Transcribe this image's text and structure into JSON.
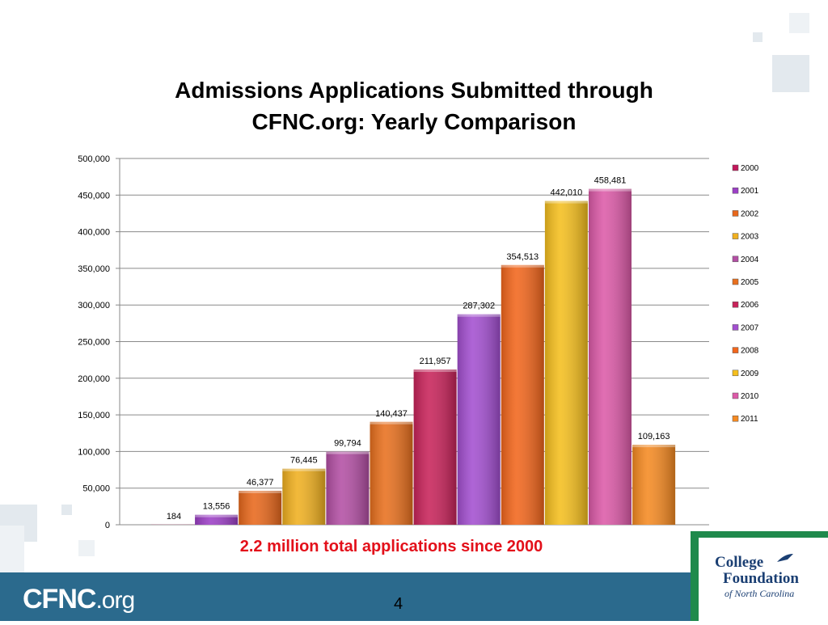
{
  "slide": {
    "title_line1": "Admissions Applications Submitted through",
    "title_line2": "CFNC.org: Yearly Comparison",
    "summary": "2.2 million total applications since 2000",
    "page_number": "4",
    "brand_main": "CFNC",
    "brand_domain": ".org",
    "logo_college": "College",
    "logo_foundation": "Foundation",
    "logo_nc": "of North Carolina"
  },
  "chart_data": {
    "type": "bar",
    "categories": [
      "2000",
      "2001",
      "2002",
      "2003",
      "2004",
      "2005",
      "2006",
      "2007",
      "2008",
      "2009",
      "2010",
      "2011"
    ],
    "values": [
      184,
      13556,
      46377,
      76445,
      99794,
      140437,
      211957,
      287302,
      354513,
      442010,
      458481,
      109163
    ],
    "data_labels": [
      "184",
      "13,556",
      "46,377",
      "76,445",
      "99,794",
      "140,437",
      "211,957",
      "287,302",
      "354,513",
      "442,010",
      "458,481",
      "109,163"
    ],
    "colors": [
      "#c2185b",
      "#9c3fc6",
      "#e8681c",
      "#f0b020",
      "#b34fa4",
      "#e8701e",
      "#c8235a",
      "#a34fd0",
      "#f2661c",
      "#f5bf1e",
      "#dc5aa8",
      "#f58a22"
    ],
    "legend": [
      "2000",
      "2001",
      "2002",
      "2003",
      "2004",
      "2005",
      "2006",
      "2007",
      "2008",
      "2009",
      "2010",
      "2011"
    ],
    "ylim": [
      0,
      500000
    ],
    "yticks": [
      0,
      50000,
      100000,
      150000,
      200000,
      250000,
      300000,
      350000,
      400000,
      450000,
      500000
    ],
    "ytick_labels": [
      "0",
      "50,000",
      "100,000",
      "150,000",
      "200,000",
      "250,000",
      "300,000",
      "350,000",
      "400,000",
      "450,000",
      "500,000"
    ],
    "grid": true,
    "legend_position": "right"
  }
}
